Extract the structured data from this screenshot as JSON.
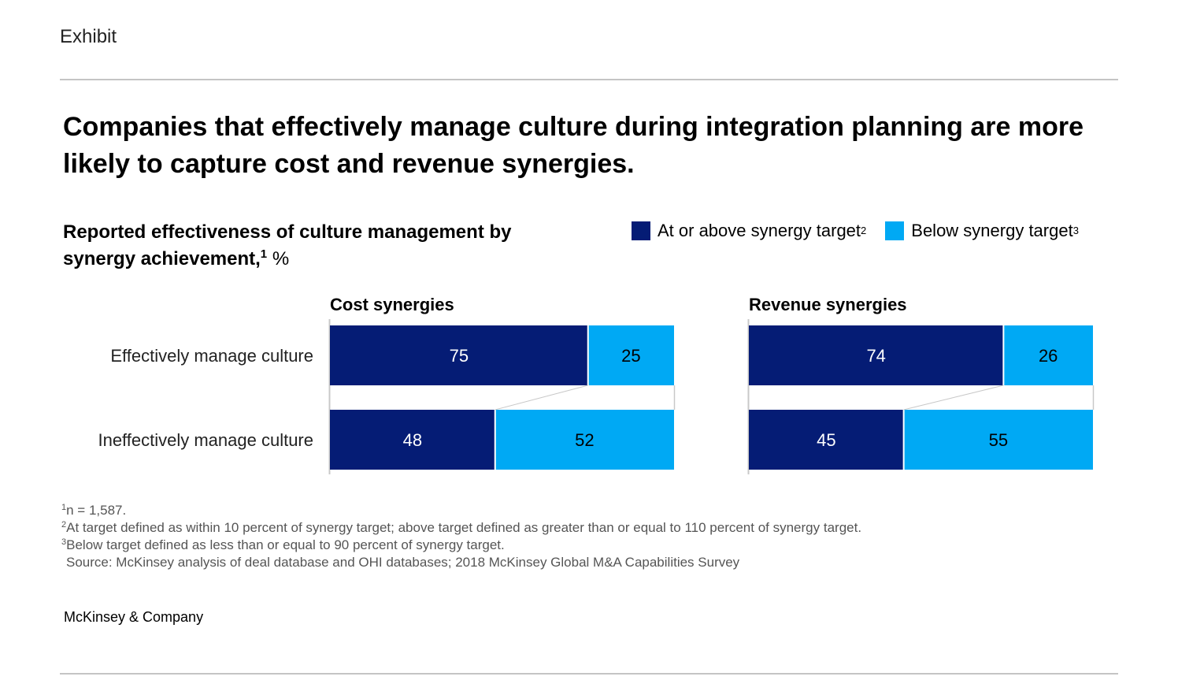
{
  "exhibit_label": "Exhibit",
  "headline": "Companies that effectively manage culture during integration planning are more likely to capture cost and revenue synergies.",
  "subtitle": {
    "text": "Reported effectiveness of culture management by synergy achievement,",
    "footnote_ref": "1",
    "unit": "%"
  },
  "legend": [
    {
      "label": "At or above synergy target",
      "footnote_ref": "2",
      "color": "#051c75"
    },
    {
      "label": "Below synergy target",
      "footnote_ref": "3",
      "color": "#00a9f4"
    }
  ],
  "chart_data": {
    "type": "bar",
    "stacked": true,
    "orientation": "horizontal",
    "categories": [
      "Effectively manage culture",
      "Ineffectively manage culture"
    ],
    "panels": [
      {
        "title": "Cost synergies",
        "series": [
          {
            "name": "At or above synergy target",
            "values": [
              75,
              48
            ]
          },
          {
            "name": "Below synergy target",
            "values": [
              25,
              52
            ]
          }
        ]
      },
      {
        "title": "Revenue synergies",
        "series": [
          {
            "name": "At or above synergy target",
            "values": [
              74,
              45
            ]
          },
          {
            "name": "Below synergy target",
            "values": [
              26,
              55
            ]
          }
        ]
      }
    ],
    "xlim": [
      0,
      100
    ],
    "unit": "%",
    "grid": false,
    "legend_position": "top-right"
  },
  "footnotes": [
    {
      "ref": "1",
      "text": "n = 1,587."
    },
    {
      "ref": "2",
      "text": "At target defined as within 10 percent of synergy target; above target defined as greater than or equal to 110 percent of synergy target."
    },
    {
      "ref": "3",
      "text": "Below target defined as less than or equal to 90 percent of synergy target."
    }
  ],
  "source": "Source: McKinsey analysis of deal database and OHI databases; 2018 McKinsey Global M&A Capabilities Survey",
  "brand": "McKinsey & Company"
}
